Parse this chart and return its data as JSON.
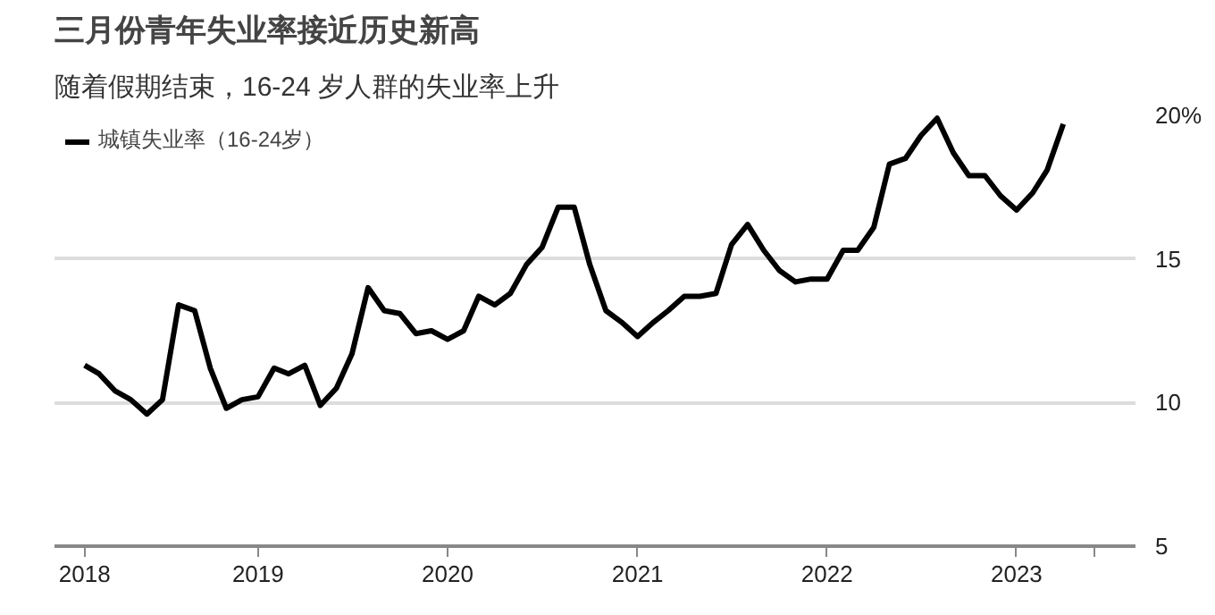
{
  "chart_data": {
    "type": "line",
    "title": "三月份青年失业率接近历史新高",
    "subtitle": "随着假期结束，16-24 岁人群的失业率上升",
    "x": [
      "2018-02",
      "2018-03",
      "2018-04",
      "2018-05",
      "2018-06",
      "2018-07",
      "2018-08",
      "2018-09",
      "2018-10",
      "2018-11",
      "2018-12",
      "2019-01",
      "2019-02",
      "2019-03",
      "2019-04",
      "2019-05",
      "2019-06",
      "2019-07",
      "2019-08",
      "2019-09",
      "2019-10",
      "2019-11",
      "2019-12",
      "2020-01",
      "2020-02",
      "2020-03",
      "2020-04",
      "2020-05",
      "2020-06",
      "2020-07",
      "2020-08",
      "2020-09",
      "2020-10",
      "2020-11",
      "2020-12",
      "2021-01",
      "2021-02",
      "2021-03",
      "2021-04",
      "2021-05",
      "2021-06",
      "2021-07",
      "2021-08",
      "2021-09",
      "2021-10",
      "2021-11",
      "2021-12",
      "2022-01",
      "2022-02",
      "2022-03",
      "2022-04",
      "2022-05",
      "2022-06",
      "2022-07",
      "2022-08",
      "2022-09",
      "2022-10",
      "2022-11",
      "2022-12",
      "2023-01",
      "2023-02",
      "2023-03",
      "2023-04"
    ],
    "series": [
      {
        "name": "城镇失业率（16-24岁）",
        "color": "#000000",
        "values": [
          11.3,
          11.0,
          10.4,
          10.1,
          9.6,
          10.1,
          13.4,
          13.2,
          11.2,
          9.8,
          10.1,
          10.2,
          11.2,
          11.0,
          11.3,
          9.9,
          10.5,
          11.7,
          14.0,
          13.2,
          13.1,
          12.4,
          12.5,
          12.2,
          12.5,
          13.7,
          13.4,
          13.8,
          14.8,
          15.4,
          16.8,
          16.8,
          14.8,
          13.2,
          12.8,
          12.3,
          12.8,
          13.2,
          13.7,
          13.7,
          13.8,
          15.5,
          16.2,
          15.3,
          14.6,
          14.2,
          14.3,
          14.3,
          15.3,
          15.3,
          16.1,
          18.3,
          18.5,
          19.3,
          19.9,
          18.7,
          17.9,
          17.9,
          17.2,
          16.7,
          17.3,
          18.1,
          19.7
        ]
      }
    ],
    "xlim": [
      "2017-12-05",
      "2023-08-18"
    ],
    "xticks": [
      {
        "value": "2018-02",
        "label": "2018"
      },
      {
        "value": "2019-01",
        "label": "2019"
      },
      {
        "value": "2020-01",
        "label": "2020"
      },
      {
        "value": "2021-01",
        "label": "2021"
      },
      {
        "value": "2022-01",
        "label": "2022"
      },
      {
        "value": "2023-01",
        "label": "2023"
      },
      {
        "value": "2023-06",
        "label": null
      }
    ],
    "ylim": [
      5,
      20
    ],
    "yticks": [
      5,
      10,
      15,
      {
        "value": 20,
        "label": "20%"
      }
    ],
    "grid": "y",
    "legend": "top left",
    "marker": "none",
    "line_style": "solid"
  }
}
